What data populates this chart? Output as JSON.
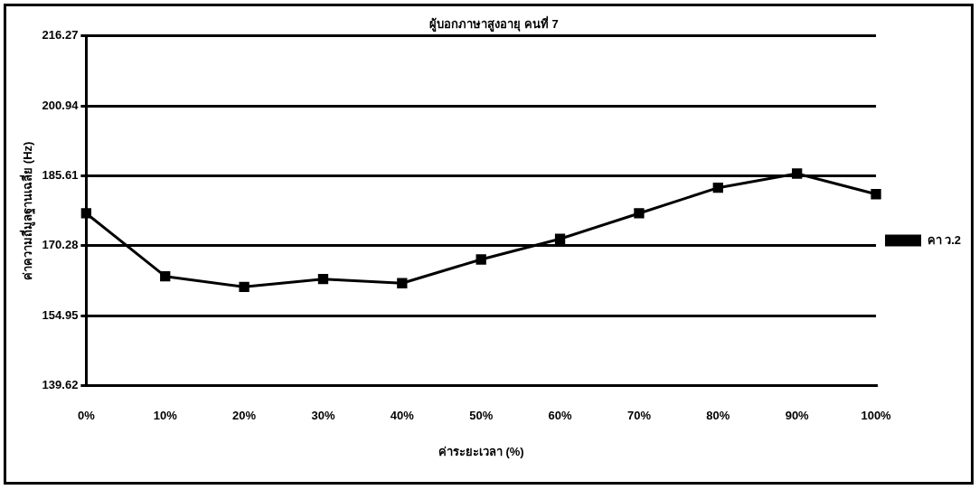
{
  "chart_data": {
    "type": "line",
    "title": "ผู้บอกภาษาสูงอายุ คนที่ 7",
    "xlabel": "ค่าระยะเวลา (%)",
    "ylabel": "ค่าความถี่มูลฐานเฉลี่ย (Hz)",
    "categories": [
      "0%",
      "10%",
      "20%",
      "30%",
      "40%",
      "50%",
      "60%",
      "70%",
      "80%",
      "90%",
      "100%"
    ],
    "series": [
      {
        "name": "คา ว.2",
        "color": "#000000",
        "values": [
          177.4,
          163.6,
          161.3,
          163.0,
          162.1,
          167.3,
          171.8,
          177.4,
          183.0,
          186.1,
          181.6
        ]
      }
    ],
    "ylim": [
      139.62,
      216.27
    ],
    "yticks": [
      139.62,
      154.95,
      170.28,
      185.61,
      200.94,
      216.27
    ],
    "grid": "y",
    "legend": "right",
    "marker": "square",
    "line_style": "solid"
  }
}
